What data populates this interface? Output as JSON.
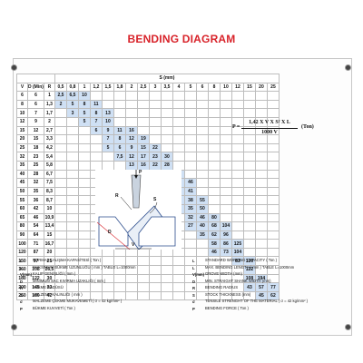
{
  "title": "BENDING DIAGRAM",
  "table": {
    "s_header": "S (mm)",
    "head": [
      "V",
      "D (Min)",
      "R",
      "0,5",
      "0,8",
      "1",
      "1,2",
      "1,5",
      "1,8",
      "2",
      "2,5",
      "3",
      "3,5",
      "4",
      "5",
      "6",
      "8",
      "10",
      "12",
      "15",
      "20",
      "25"
    ],
    "rows": [
      [
        "6",
        "6",
        "1",
        "2,5",
        "6,5",
        "10",
        "",
        "",
        "",
        "",
        "",
        "",
        "",
        "",
        "",
        "",
        "",
        "",
        "",
        "",
        "",
        ""
      ],
      [
        "8",
        "6",
        "1,3",
        "2",
        "5",
        "8",
        "11",
        "",
        "",
        "",
        "",
        "",
        "",
        "",
        "",
        "",
        "",
        "",
        "",
        "",
        "",
        ""
      ],
      [
        "10",
        "7",
        "1,7",
        "",
        "3",
        "5",
        "8",
        "13",
        "",
        "",
        "",
        "",
        "",
        "",
        "",
        "",
        "",
        "",
        "",
        "",
        "",
        ""
      ],
      [
        "12",
        "9",
        "2",
        "",
        "",
        "5",
        "7",
        "10",
        "",
        "",
        "",
        "",
        "",
        "",
        "",
        "",
        "",
        "",
        "",
        "",
        "",
        ""
      ],
      [
        "15",
        "12",
        "2,7",
        "",
        "",
        "",
        "6",
        "9",
        "11",
        "16",
        "",
        "",
        "",
        "",
        "",
        "",
        "",
        "",
        "",
        "",
        "",
        ""
      ],
      [
        "20",
        "15",
        "3,3",
        "",
        "",
        "",
        "",
        "7",
        "8",
        "12",
        "19",
        "",
        "",
        "",
        "",
        "",
        "",
        "",
        "",
        "",
        "",
        ""
      ],
      [
        "25",
        "18",
        "4,2",
        "",
        "",
        "",
        "",
        "5",
        "6",
        "9",
        "15",
        "22",
        "",
        "",
        "",
        "",
        "",
        "",
        "",
        "",
        "",
        ""
      ],
      [
        "32",
        "23",
        "5,4",
        "",
        "",
        "",
        "",
        "",
        "7,5",
        "12",
        "17",
        "23",
        "30",
        "",
        "",
        "",
        "",
        "",
        "",
        "",
        "",
        ""
      ],
      [
        "35",
        "25",
        "5,8",
        "",
        "",
        "",
        "",
        "",
        "",
        "13",
        "16",
        "22",
        "28",
        "",
        "",
        "",
        "",
        "",
        "",
        "",
        "",
        ""
      ],
      [
        "40",
        "28",
        "6,7",
        "",
        "",
        "",
        "",
        "",
        "",
        "10",
        "14",
        "19",
        "26",
        "34",
        "",
        "",
        "",
        "",
        "",
        "",
        "",
        ""
      ],
      [
        "45",
        "32",
        "7,5",
        "",
        "",
        "",
        "",
        "",
        "",
        "",
        "13",
        "17",
        "23",
        "30",
        "46",
        "",
        "",
        "",
        "",
        "",
        "",
        ""
      ],
      [
        "50",
        "35",
        "8,3",
        "",
        "",
        "",
        "",
        "",
        "",
        "",
        "",
        "15",
        "20",
        "26",
        "41",
        "",
        "",
        "",
        "",
        "",
        "",
        ""
      ],
      [
        "55",
        "36",
        "8,7",
        "",
        "",
        "",
        "",
        "",
        "",
        "",
        "",
        "",
        "18",
        "24",
        "38",
        "55",
        "",
        "",
        "",
        "",
        "",
        ""
      ],
      [
        "60",
        "42",
        "10",
        "",
        "",
        "",
        "",
        "",
        "",
        "",
        "",
        "",
        "",
        "22",
        "35",
        "50",
        "",
        "",
        "",
        "",
        "",
        ""
      ],
      [
        "65",
        "46",
        "10,9",
        "",
        "",
        "",
        "",
        "",
        "",
        "",
        "",
        "",
        "",
        "",
        "32",
        "46",
        "80",
        "",
        "",
        "",
        "",
        ""
      ],
      [
        "80",
        "54",
        "13,4",
        "",
        "",
        "",
        "",
        "",
        "",
        "",
        "",
        "",
        "",
        "",
        "27",
        "40",
        "68",
        "104",
        "",
        "",
        "",
        ""
      ],
      [
        "90",
        "64",
        "15",
        "",
        "",
        "",
        "",
        "",
        "",
        "",
        "",
        "",
        "",
        "",
        "",
        "35",
        "62",
        "96",
        "",
        "",
        "",
        ""
      ],
      [
        "100",
        "71",
        "16,7",
        "",
        "",
        "",
        "",
        "",
        "",
        "",
        "",
        "",
        "",
        "",
        "",
        "",
        "58",
        "86",
        "125",
        "",
        "",
        ""
      ],
      [
        "120",
        "87",
        "20",
        "",
        "",
        "",
        "",
        "",
        "",
        "",
        "",
        "",
        "",
        "",
        "",
        "",
        "46",
        "73",
        "104",
        "",
        "",
        ""
      ],
      [
        "150",
        "97",
        "25",
        "",
        "",
        "",
        "",
        "",
        "",
        "",
        "",
        "",
        "",
        "",
        "",
        "",
        "",
        "",
        "83",
        "130",
        "",
        ""
      ],
      [
        "160",
        "108",
        "26,5",
        "",
        "",
        "",
        "",
        "",
        "",
        "",
        "",
        "",
        "",
        "",
        "",
        "",
        "",
        "",
        "",
        "122",
        "",
        ""
      ],
      [
        "180",
        "122",
        "30",
        "",
        "",
        "",
        "",
        "",
        "",
        "",
        "",
        "",
        "",
        "",
        "",
        "",
        "",
        "",
        "",
        "108",
        "194",
        ""
      ],
      [
        "200",
        "145",
        "33",
        "",
        "",
        "",
        "",
        "",
        "",
        "",
        "",
        "",
        "",
        "",
        "",
        "",
        "",
        "",
        "",
        "43",
        "57",
        "77"
      ],
      [
        "250",
        "180",
        "42",
        "",
        "",
        "",
        "",
        "",
        "",
        "",
        "",
        "",
        "",
        "",
        "",
        "",
        "",
        "",
        "",
        "",
        "45",
        "62"
      ]
    ]
  },
  "formula": {
    "p": "P =",
    "numerator": "1,42 X V X S² X L",
    "denominator": "1000 V",
    "unit": "(Ton)"
  },
  "illustration": {
    "labels": [
      "P",
      "S",
      "R",
      "D",
      "V"
    ]
  },
  "legend": {
    "left": [
      {
        "sym": "L",
        "text": "NORMAL ÇALIŞMA KAPASİTESİ ( Ton )"
      },
      {
        "sym": "L",
        "text": "MAKSİMUM BÜKME UZUNLUĞU ( mm ) TABLO L=1000mm"
      },
      {
        "sym": "V(mm)",
        "text": "KALIP GENİŞLİĞİ ( mm )"
      },
      {
        "sym": "D",
        "text": "MİNİMUM SAC KIVIRMA UZAKLIĞI ( mm )"
      },
      {
        "sym": "R",
        "text": "BÜKME RADÜSÜ"
      },
      {
        "sym": "S",
        "text": "MALZEME KALINLIĞI ( mm )"
      },
      {
        "sym": "σ",
        "text": "MALZEME ÇEKME MUKAVEMETİ ( σ = 42 kg/mm² )"
      },
      {
        "sym": "P",
        "text": "BÜKME KUVVETİ ( Ton )"
      }
    ],
    "right": [
      {
        "sym": "L",
        "text": "STANDARD WORKING CAPACITY ( Ton )"
      },
      {
        "sym": "L",
        "text": "MAX. BENDING LENGTH ( mm ) TABLE L=1000mm"
      },
      {
        "sym": "V(mm)",
        "text": "GROVE WIDTH (mm)"
      },
      {
        "sym": "D",
        "text": "MIN. STRAIGHT SHANK WIDTH (mm)"
      },
      {
        "sym": "R",
        "text": "BENDING RADIUS"
      },
      {
        "sym": "S",
        "text": "STOCK THICKNESS (mm)"
      },
      {
        "sym": "σ",
        "text": "TENSILE STRENGHT OF THE MATERIAL ( σ = 42 kg/mm² )"
      },
      {
        "sym": "P",
        "text": "BENDING FORCE ( Ton )"
      }
    ]
  },
  "colors": {
    "title": "#d8232a",
    "value_cell": "#cfe0f4"
  }
}
